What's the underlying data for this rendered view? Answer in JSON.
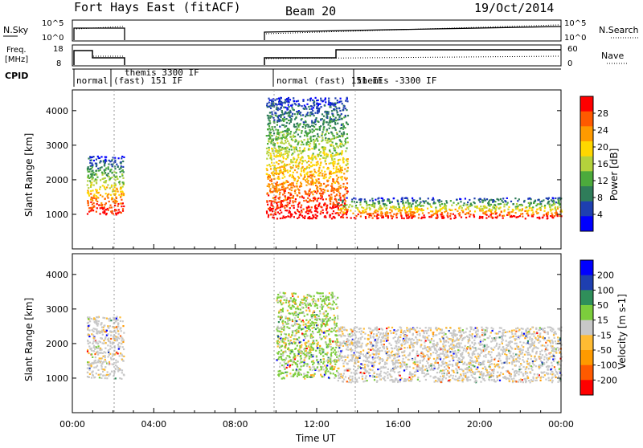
{
  "header": {
    "station": "Fort Hays East (fitACF)",
    "beam": "Beam 20",
    "date": "19/Oct/2014"
  },
  "top_panels": {
    "nsky": {
      "label": "N.Sky",
      "ticks": [
        "10^5",
        "10^0"
      ]
    },
    "nsearch": {
      "label": "N.Search",
      "ticks": [
        "10^5",
        "10^0"
      ]
    },
    "freq": {
      "label_line1": "Freq.",
      "label_line2": "[MHz]",
      "ticks": [
        "18",
        "8"
      ]
    },
    "nave": {
      "label": "Nave",
      "ticks": [
        "60",
        "0"
      ]
    },
    "cpid": {
      "label": "CPID",
      "modes": [
        "normal",
        "themis 3300 IF",
        "(fast) 151 IF",
        "normal (fast) 151 IF",
        "themis -3300 IF"
      ]
    }
  },
  "colors": {
    "power_scale": [
      "#0000ff",
      "#1e3fb0",
      "#2f7d5a",
      "#4caa3c",
      "#b4d23c",
      "#ffd700",
      "#ff9a00",
      "#ff5a00",
      "#ff0000"
    ],
    "velocity_scale": [
      "#ff0000",
      "#ff5a00",
      "#ff9a00",
      "#ffbb33",
      "#c8c8c8",
      "#7ccd3c",
      "#2f8f5a",
      "#1e3fb0",
      "#0000ff"
    ]
  },
  "chart_data": [
    {
      "type": "heatmap",
      "name": "Power",
      "xlabel": "",
      "ylabel": "Slant Range [km]",
      "x_range_hours": [
        0,
        24
      ],
      "ylim": [
        0,
        4600
      ],
      "yticks": [
        "4000",
        "3000",
        "2000",
        "1000"
      ],
      "colorbar": {
        "label": "Power [dB]",
        "ticks": [
          "28",
          "24",
          "20",
          "16",
          "12",
          "8",
          "4"
        ]
      },
      "echo_bands": [
        {
          "x_hours": [
            0.7,
            2.5
          ],
          "slant_range_km": [
            1000,
            2700
          ],
          "dominant_db": 20
        },
        {
          "x_hours": [
            9.5,
            13.5
          ],
          "slant_range_km": [
            900,
            4400
          ],
          "dominant_db": 16
        },
        {
          "x_hours": [
            13.0,
            24.0
          ],
          "slant_range_km": [
            900,
            1500
          ],
          "dominant_db": 28
        }
      ]
    },
    {
      "type": "heatmap",
      "name": "Velocity",
      "xlabel": "Time UT",
      "ylabel": "Slant Range [km]",
      "x_range_hours": [
        0,
        24
      ],
      "xticks": [
        "00:00",
        "04:00",
        "08:00",
        "12:00",
        "16:00",
        "20:00",
        "00:00"
      ],
      "ylim": [
        0,
        4600
      ],
      "yticks": [
        "4000",
        "3000",
        "2000",
        "1000"
      ],
      "colorbar": {
        "label": "Velocity [m s-1]",
        "ticks": [
          "200",
          "100",
          "50",
          "15",
          "-15",
          "-50",
          "-100",
          "-200"
        ]
      },
      "echo_bands": [
        {
          "x_hours": [
            0.7,
            2.5
          ],
          "slant_range_km": [
            1000,
            2800
          ],
          "dominant_ms": 0
        },
        {
          "x_hours": [
            10.0,
            13.0
          ],
          "slant_range_km": [
            1000,
            3500
          ],
          "dominant_ms": 30
        },
        {
          "x_hours": [
            13.0,
            24.0
          ],
          "slant_range_km": [
            900,
            2500
          ],
          "dominant_ms": 0
        }
      ]
    }
  ]
}
